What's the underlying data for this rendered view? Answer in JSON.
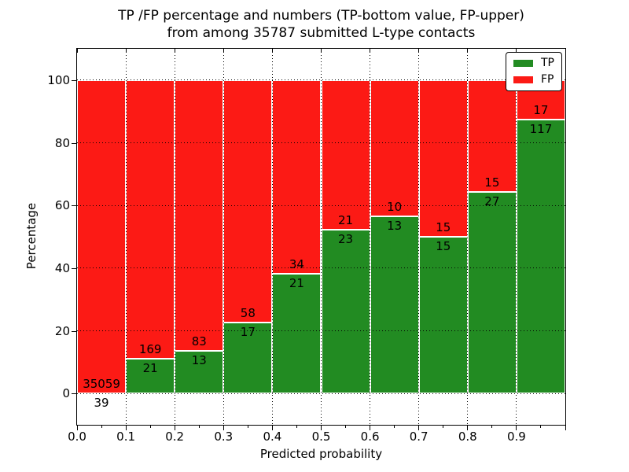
{
  "figure": {
    "title_line1": "TP /FP percentage and numbers (TP-bottom value, FP-upper)",
    "title_line2": "from among 35787 submitted L-type contacts"
  },
  "chart_data": {
    "type": "bar",
    "stacked": true,
    "title": "TP /FP percentage and numbers (TP-bottom value, FP-upper) from among 35787 submitted L-type contacts",
    "xlabel": "Predicted probability",
    "ylabel": "Percentage",
    "xlim": [
      0.0,
      1.0
    ],
    "ylim": [
      -10,
      110
    ],
    "x_tick_labels": [
      "0.0",
      "0.1",
      "0.2",
      "0.3",
      "0.4",
      "0.5",
      "0.6",
      "0.7",
      "0.8",
      "0.9"
    ],
    "y_tick_values": [
      0,
      20,
      40,
      60,
      80,
      100
    ],
    "bar_width": 0.1,
    "bin_starts": [
      0.0,
      0.1,
      0.2,
      0.3,
      0.4,
      0.5,
      0.6,
      0.7,
      0.8,
      0.9
    ],
    "grid": "dotted black, both axes, on",
    "legend_position": "upper right",
    "series": [
      {
        "name": "TP",
        "color": "#228B22",
        "counts": [
          39,
          21,
          13,
          17,
          21,
          23,
          13,
          15,
          27,
          117
        ]
      },
      {
        "name": "FP",
        "color": "#FC1A15",
        "counts": [
          35059,
          169,
          83,
          58,
          34,
          21,
          10,
          15,
          15,
          17
        ]
      }
    ],
    "tp_percent_of_bin": [
      0.11,
      11.05,
      13.54,
      22.67,
      38.18,
      52.27,
      56.52,
      50.0,
      64.29,
      87.31
    ],
    "total_contacts": "35787"
  },
  "legend": {
    "items": [
      {
        "label": "TP",
        "color": "#228B22"
      },
      {
        "label": "FP",
        "color": "#FC1A15"
      }
    ]
  }
}
